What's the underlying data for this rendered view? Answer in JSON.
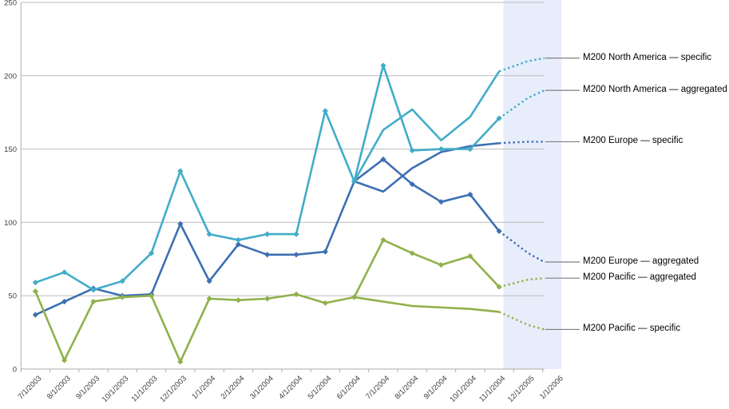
{
  "chart_data": {
    "type": "line",
    "title": "",
    "xlabel": "",
    "ylabel": "",
    "ylim": [
      0,
      250
    ],
    "y_ticks": [
      0,
      50,
      100,
      150,
      200,
      250
    ],
    "grid": "horizontal",
    "legend_position": "right-callouts",
    "categories": [
      "7/1/2003",
      "8/1/2003",
      "9/1/2003",
      "10/1/2003",
      "11/1/2003",
      "12/1/2003",
      "1/1/2004",
      "2/1/2004",
      "3/1/2004",
      "4/1/2004",
      "5/1/2004",
      "6/1/2004",
      "7/1/2004",
      "8/1/2004",
      "9/1/2004",
      "10/1/2004",
      "11/1/2004",
      "12/1/2005",
      "1/1/2006"
    ],
    "forecast_band": {
      "start_category": "11/1/2004",
      "end_category": "1/1/2006",
      "color": "#E8EDFB"
    },
    "series": [
      {
        "name": "M200 Europe — aggregated",
        "color": "#3E6FB3",
        "marker": true,
        "history": [
          37,
          46,
          55,
          50,
          51,
          99,
          60,
          85,
          78,
          78,
          80,
          128,
          143,
          126,
          114,
          119,
          94
        ],
        "forecast": [
          79,
          73
        ]
      },
      {
        "name": "M200 Europe — specific",
        "color": "#3E6FB3",
        "marker": false,
        "history": [
          null,
          null,
          null,
          null,
          null,
          null,
          null,
          null,
          null,
          null,
          null,
          128,
          121,
          137,
          148,
          152,
          154
        ],
        "forecast": [
          155,
          155
        ]
      },
      {
        "name": "M200 Pacific — aggregated",
        "color": "#8FB14B",
        "marker": true,
        "history": [
          53,
          6,
          46,
          49,
          50,
          5,
          48,
          47,
          48,
          51,
          45,
          49,
          88,
          79,
          71,
          77,
          56
        ],
        "forecast": [
          61,
          62
        ]
      },
      {
        "name": "M200 Pacific — specific",
        "color": "#8FB14B",
        "marker": false,
        "history": [
          null,
          null,
          null,
          null,
          null,
          null,
          null,
          null,
          null,
          null,
          null,
          49,
          46,
          43,
          42,
          41,
          39
        ],
        "forecast": [
          30,
          27
        ]
      },
      {
        "name": "M200 North America — aggregated",
        "color": "#41ACC8",
        "marker": true,
        "history": [
          59,
          66,
          54,
          60,
          79,
          135,
          92,
          88,
          92,
          92,
          176,
          128,
          207,
          149,
          150,
          150,
          171
        ],
        "forecast": [
          185,
          190
        ]
      },
      {
        "name": "M200 North America — specific",
        "color": "#41ACC8",
        "marker": false,
        "history": [
          null,
          null,
          null,
          null,
          null,
          null,
          null,
          null,
          null,
          null,
          null,
          128,
          163,
          177,
          156,
          172,
          203
        ],
        "forecast": [
          210,
          212
        ]
      }
    ],
    "callout_colors": {
      "leader_line": "#7F7F7F"
    },
    "axis_colors": {
      "line": "#ABABAB",
      "grid": "#BDBDBD",
      "tick_label": "#3F3F3F"
    }
  }
}
